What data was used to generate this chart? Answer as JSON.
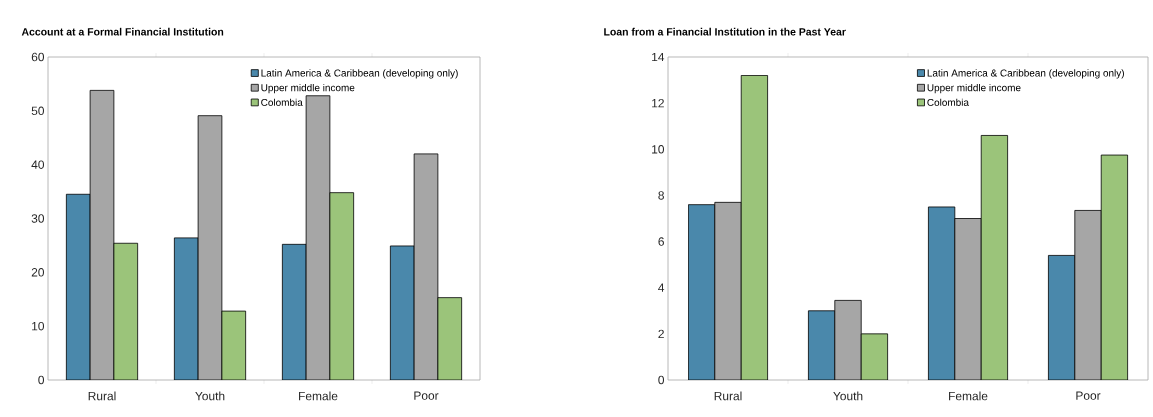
{
  "chart_data": [
    {
      "type": "bar",
      "title": "Account at a Formal Financial Institution",
      "categories": [
        "Rural",
        "Youth",
        "Female",
        "Poor"
      ],
      "series": [
        {
          "name": "Latin America & Caribbean (developing only)",
          "color": "#4a88ab",
          "values": [
            34.5,
            26.4,
            25.2,
            24.9
          ]
        },
        {
          "name": "Upper middle income",
          "color": "#a6a6a6",
          "values": [
            53.8,
            49.1,
            52.8,
            42.0
          ]
        },
        {
          "name": "Colombia",
          "color": "#9bc47a",
          "values": [
            25.4,
            12.8,
            34.8,
            15.3
          ]
        }
      ],
      "ylim": [
        0,
        60
      ],
      "yticks": [
        0,
        10,
        20,
        30,
        40,
        50,
        60
      ],
      "grid": false,
      "legend": "top right"
    },
    {
      "type": "bar",
      "title": "Loan from a Financial Institution in the Past Year",
      "categories": [
        "Rural",
        "Youth",
        "Female",
        "Poor"
      ],
      "series": [
        {
          "name": "Latin America & Caribbean (developing only)",
          "color": "#4a88ab",
          "values": [
            7.6,
            3.0,
            7.5,
            5.4
          ]
        },
        {
          "name": "Upper middle income",
          "color": "#a6a6a6",
          "values": [
            7.7,
            3.45,
            7.0,
            7.35
          ]
        },
        {
          "name": "Colombia",
          "color": "#9bc47a",
          "values": [
            13.2,
            2.0,
            10.6,
            9.75
          ]
        }
      ],
      "ylim": [
        0,
        14
      ],
      "yticks": [
        0,
        2,
        4,
        6,
        8,
        10,
        12,
        14
      ],
      "grid": false,
      "legend": "top right"
    }
  ]
}
